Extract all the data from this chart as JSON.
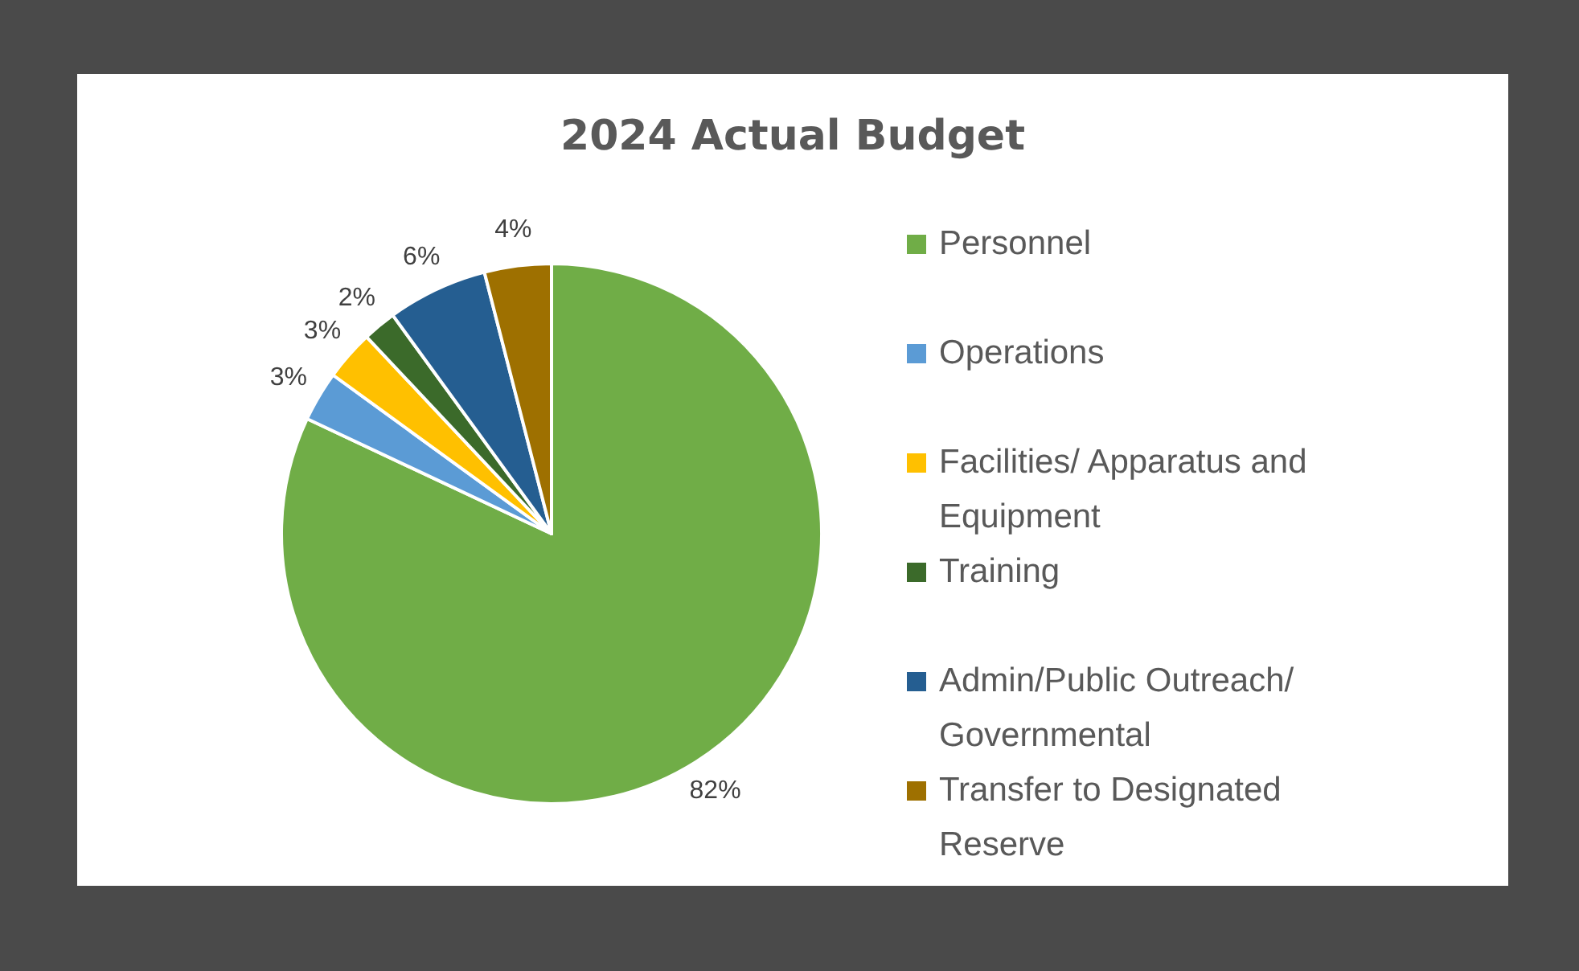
{
  "chart_data": {
    "type": "pie",
    "title": "2024 Actual Budget",
    "categories": [
      "Personnel",
      "Operations",
      "Facilities/ Apparatus and Equipment",
      "Training",
      "Admin/Public Outreach/Governmental",
      "Transfer to Designated Reserve"
    ],
    "values": [
      82,
      3,
      3,
      2,
      6,
      4
    ],
    "colors": [
      "#70ad47",
      "#5b9bd5",
      "#ffc000",
      "#3b6a2a",
      "#255e91",
      "#9e7000"
    ],
    "value_labels": [
      "82%",
      "3%",
      "3%",
      "2%",
      "6%",
      "4%"
    ],
    "legend": "right"
  }
}
